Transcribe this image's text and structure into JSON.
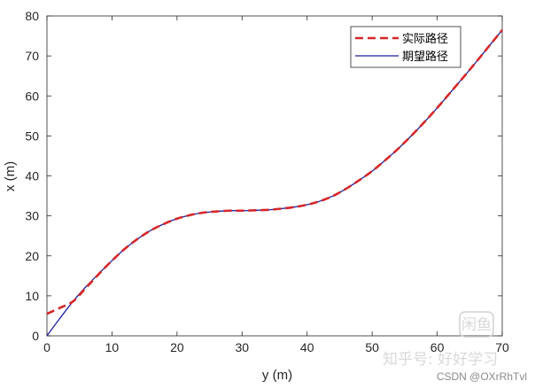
{
  "chart_data": {
    "type": "line",
    "title": "",
    "xlabel": "y (m)",
    "ylabel": "x (m)",
    "xlim": [
      0,
      70
    ],
    "ylim": [
      0,
      80
    ],
    "xticks": [
      "0",
      "10",
      "20",
      "30",
      "40",
      "50",
      "60",
      "70"
    ],
    "yticks": [
      "0",
      "10",
      "20",
      "30",
      "40",
      "50",
      "60",
      "70",
      "80"
    ],
    "grid": false,
    "legend_position": "top-right",
    "series": [
      {
        "name": "实际路径",
        "color": "#d62728",
        "style": "dashed",
        "x": [
          0,
          2,
          4,
          6,
          8,
          10,
          12,
          14,
          16,
          18,
          20,
          22,
          24,
          26,
          28,
          30,
          32,
          34,
          36,
          38,
          40,
          42,
          44,
          46,
          48,
          50,
          52,
          54,
          56,
          58,
          60,
          62,
          64,
          66,
          68,
          70
        ],
        "y": [
          5.5,
          7.0,
          8.6,
          12.0,
          15.5,
          18.8,
          21.8,
          24.3,
          26.4,
          28.0,
          29.3,
          30.2,
          30.8,
          31.1,
          31.3,
          31.3,
          31.4,
          31.5,
          31.8,
          32.2,
          32.8,
          33.7,
          35.0,
          36.8,
          38.9,
          41.2,
          43.9,
          46.8,
          50.0,
          53.4,
          57.0,
          60.8,
          64.6,
          68.5,
          72.5,
          76.5
        ]
      },
      {
        "name": "期望路径",
        "color": "#1f1fa0",
        "style": "solid",
        "x": [
          0,
          2,
          4,
          6,
          8,
          10,
          12,
          14,
          16,
          18,
          20,
          22,
          24,
          26,
          28,
          30,
          32,
          34,
          36,
          38,
          40,
          42,
          44,
          46,
          48,
          50,
          52,
          54,
          56,
          58,
          60,
          62,
          64,
          66,
          68,
          70
        ],
        "y": [
          0,
          4.4,
          8.6,
          12.3,
          15.6,
          18.8,
          21.8,
          24.3,
          26.4,
          28.0,
          29.3,
          30.2,
          30.8,
          31.1,
          31.3,
          31.3,
          31.4,
          31.5,
          31.8,
          32.2,
          32.8,
          33.7,
          35.0,
          36.8,
          38.9,
          41.2,
          43.9,
          46.8,
          50.0,
          53.4,
          57.0,
          60.8,
          64.6,
          68.5,
          72.5,
          76.5
        ]
      }
    ]
  },
  "watermark": {
    "badge": "闲鱼",
    "text": "CSDN @OXrRhTvl",
    "faint": "知乎号: 好好学习"
  }
}
